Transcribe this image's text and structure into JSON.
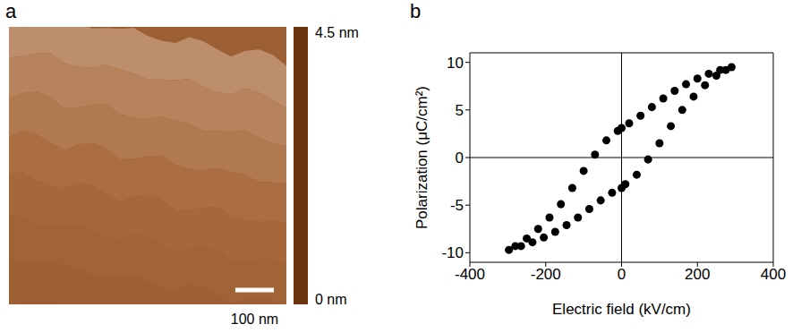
{
  "chart_data": [
    {
      "panel": "a",
      "type": "image",
      "xlim": [
        0,
        720
      ],
      "scale_bar": {
        "value": 100,
        "label": "100 nm"
      },
      "colorbar": {
        "range": [
          0,
          4.5
        ],
        "ticks": [
          {
            "value": 0,
            "label": "0 nm"
          },
          {
            "value": 4.5,
            "label": "4.5 nm"
          }
        ],
        "colors": [
          "#6b3510",
          "#a86a3c",
          "#ffffff"
        ]
      }
    },
    {
      "panel": "b",
      "type": "scatter",
      "x_label": "Electric field (kV/cm)",
      "y_label": "Polarization (μC/cm²)",
      "xlim": [
        -400,
        400
      ],
      "xticks": [
        -400,
        -200,
        0,
        200,
        400
      ],
      "ylim": [
        -11,
        11
      ],
      "yticks": [
        -10,
        -5,
        0,
        5,
        10
      ],
      "marker": "circle",
      "color": "#000000",
      "x": [
        290,
        260,
        230,
        200,
        170,
        140,
        110,
        80,
        50,
        20,
        0,
        -10,
        -40,
        -70,
        -100,
        -130,
        -160,
        -190,
        -220,
        -250,
        -280,
        -297,
        -265,
        -235,
        -205,
        -175,
        -145,
        -115,
        -85,
        -55,
        -25,
        0,
        10,
        40,
        70,
        100,
        130,
        160,
        190,
        220,
        250,
        275
      ],
      "values": [
        9.5,
        9.2,
        8.8,
        8.3,
        7.7,
        7.0,
        6.2,
        5.3,
        4.4,
        3.6,
        3.1,
        2.8,
        1.8,
        0.3,
        -1.4,
        -3.2,
        -4.9,
        -6.3,
        -7.5,
        -8.5,
        -9.3,
        -9.7,
        -9.3,
        -8.9,
        -8.4,
        -7.8,
        -7.1,
        -6.3,
        -5.4,
        -4.5,
        -3.7,
        -3.2,
        -2.8,
        -1.8,
        -0.2,
        1.5,
        3.3,
        5.0,
        6.4,
        7.6,
        8.6,
        9.2
      ]
    }
  ]
}
